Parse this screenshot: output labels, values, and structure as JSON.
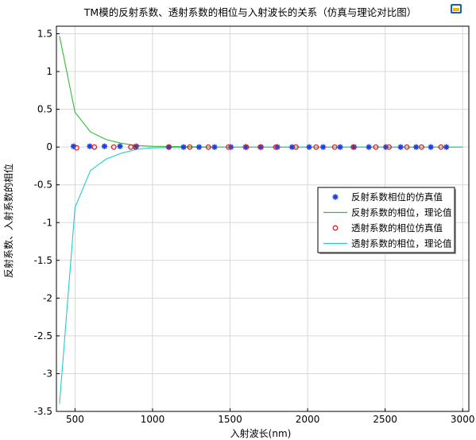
{
  "chart_data": {
    "type": "line",
    "title": "TM模的反射系数、透射系数的相位与入射波长的关系（仿真与理论对比图）",
    "xlabel": "入射波长(nm)",
    "ylabel": "反射系数、入射系数的相位",
    "xlim": [
      380,
      3040
    ],
    "ylim": [
      -3.5,
      1.6
    ],
    "x_ticks": [
      500,
      1000,
      1500,
      2000,
      2500,
      3000
    ],
    "y_ticks": [
      -3.5,
      -3,
      -2.5,
      -2,
      -1.5,
      -1,
      -0.5,
      0,
      0.5,
      1,
      1.5
    ],
    "y_tick_labels": [
      "-3.5",
      "-3",
      "-2.5",
      "-2",
      "-1.5",
      "-1",
      "-0.5",
      "0",
      "0.5",
      "1",
      "1.5"
    ],
    "grid": true,
    "legend_position": "right-center",
    "series": [
      {
        "name": "反射系数相位的仿真值",
        "style": "marker",
        "marker": "asterisk",
        "color": "#1f3fe0",
        "x": [
          490,
          595,
          690,
          790,
          895,
          1105,
          1200,
          1300,
          1400,
          1505,
          1600,
          1700,
          1805,
          1900,
          2010,
          2100,
          2210,
          2300,
          2395,
          2505,
          2600,
          2700,
          2795,
          2895
        ],
        "y": [
          0.01,
          0.01,
          0.01,
          0.01,
          0.01,
          0.0,
          0.0,
          0.0,
          0.0,
          0.0,
          0.0,
          0.0,
          0.0,
          0.0,
          0.0,
          0.0,
          0.0,
          0.0,
          0.0,
          0.0,
          0.0,
          0.0,
          0.0,
          0.0
        ]
      },
      {
        "name": "反射系数的相位，理论值",
        "style": "line",
        "color": "#33bb33",
        "x": [
          400,
          500,
          600,
          700,
          800,
          900,
          1000,
          1200,
          1500,
          2000,
          2500,
          3000
        ],
        "y": [
          1.47,
          0.46,
          0.2,
          0.1,
          0.05,
          0.02,
          0.01,
          0.005,
          0.0,
          0.0,
          0.0,
          0.0
        ]
      },
      {
        "name": "透射系数的相位仿真值",
        "style": "marker",
        "marker": "circle",
        "color": "#dd2222",
        "x": [
          510,
          625,
          750,
          860,
          890,
          1105,
          1240,
          1360,
          1490,
          1605,
          1695,
          1795,
          1925,
          2055,
          2175,
          2295,
          2440,
          2525,
          2640,
          2735,
          2860
        ],
        "y": [
          -0.01,
          0.0,
          0.0,
          0.0,
          0.0,
          0.0,
          0.0,
          0.0,
          0.0,
          0.0,
          0.0,
          0.0,
          0.0,
          0.0,
          0.0,
          0.0,
          0.0,
          0.0,
          0.0,
          0.0,
          0.0
        ]
      },
      {
        "name": "透射系数的相位，理论值",
        "style": "line",
        "color": "#22cccc",
        "x": [
          400,
          500,
          600,
          700,
          800,
          900,
          1000,
          1200,
          1500,
          2000,
          2500,
          3000
        ],
        "y": [
          -3.4,
          -0.8,
          -0.31,
          -0.16,
          -0.08,
          -0.03,
          -0.01,
          -0.005,
          0.0,
          0.0,
          0.0,
          0.0
        ]
      }
    ]
  },
  "icons": {
    "logo": "app-logo-icon"
  }
}
